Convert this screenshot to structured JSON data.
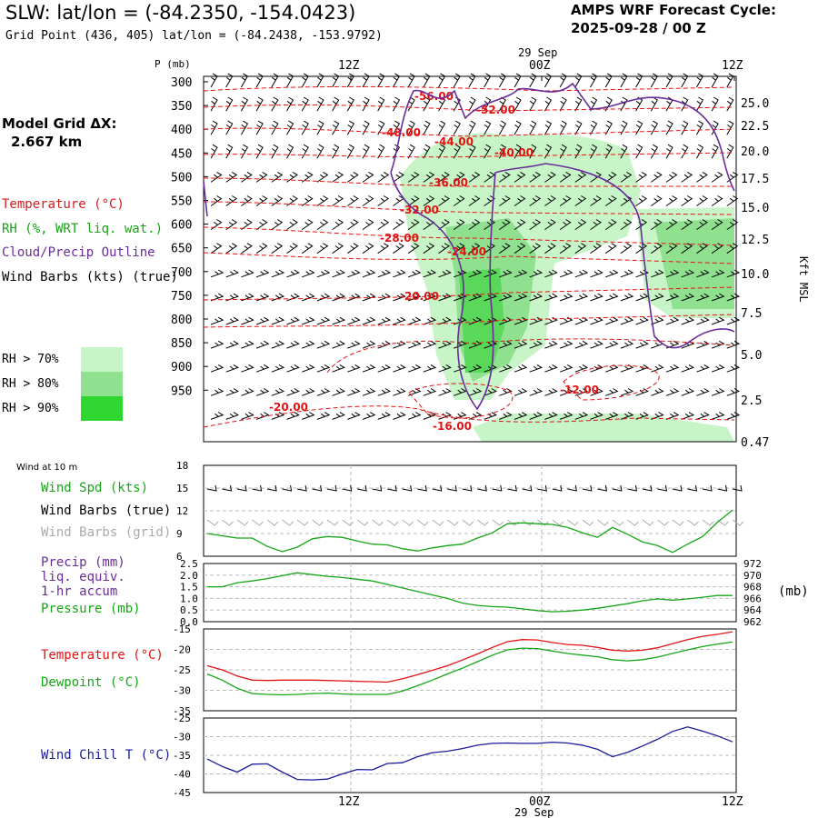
{
  "header": {
    "title": "SLW:  lat/lon = (-84.2350, -154.0423)",
    "subtitle": "Grid Point (436, 405) lat/lon = (-84.2438, -153.9792)",
    "cycle_line1": "AMPS WRF Forecast Cycle:",
    "cycle_line2": "2025-09-28 / 00  Z"
  },
  "model_grid": {
    "line1": "Model Grid ΔX:",
    "line2": "2.667 km"
  },
  "legend": {
    "temperature": "Temperature (°C)",
    "rh": "RH (%, WRT liq. wat.)",
    "cloud": "Cloud/Precip Outline",
    "wind": "Wind Barbs (kts) (true)"
  },
  "rh_legend": [
    {
      "label": "RH > 70%",
      "color": "#c8f5c8"
    },
    {
      "label": "RH > 80%",
      "color": "#8fe08f"
    },
    {
      "label": "RH > 90%",
      "color": "#2fd62f"
    }
  ],
  "panel2": {
    "wind_at_10m": "Wind at 10 m",
    "wind_spd": "Wind Spd (kts)",
    "wind_barbs_true": "Wind Barbs (true)",
    "wind_barbs_grid": "Wind Barbs (grid)"
  },
  "panel3": {
    "precip": "Precip (mm)",
    "liq": "liq. equiv.",
    "accum": "1-hr accum",
    "pressure": "Pressure (mb)",
    "unit_right": "(mb)"
  },
  "panel4": {
    "temperature": "Temperature (°C)",
    "dewpoint": "Dewpoint (°C)"
  },
  "panel5": {
    "wind_chill": "Wind Chill T (°C)"
  },
  "colors": {
    "temperature": "#e01414",
    "rh_green": "#16a516",
    "cloud": "#6a2c9a",
    "wind_chill": "#1a1a9a",
    "barb_grid": "#aaaaaa"
  },
  "chart_data": [
    {
      "type": "heatmap",
      "name": "cross-section",
      "ylabel_left": "P (mb)",
      "ylabel_right": "Kft MSL",
      "y_ticks": [
        "300",
        "350",
        "400",
        "450",
        "500",
        "550",
        "600",
        "650",
        "700",
        "750",
        "800",
        "850",
        "900",
        "950"
      ],
      "right_ticks": [
        "25.0",
        "22.5",
        "20.0",
        "17.5",
        "15.0",
        "12.5",
        "10.0",
        "7.5",
        "5.0",
        "2.5",
        "0.47"
      ],
      "x_top_ticks": [
        "12Z",
        "00Z",
        "12Z"
      ],
      "x_top_date": "29 Sep",
      "contour_labels": [
        "-56.00",
        "-52.00",
        "-48.00",
        "-44.00",
        "-40.00",
        "-36.00",
        "-32.00",
        "-28.00",
        "-24.00",
        "-20.00",
        "-16.00",
        "-12.00",
        "-20.00"
      ]
    },
    {
      "type": "line",
      "name": "wind-10m",
      "y_ticks": [
        "18",
        "15",
        "12",
        "9",
        "6"
      ],
      "ylim": [
        6,
        18
      ],
      "series": [
        {
          "name": "Wind Spd (kts)",
          "values": [
            9,
            8.7,
            8.4,
            8.4,
            7.3,
            6.6,
            7.2,
            8.3,
            8.6,
            8.5,
            8.0,
            7.6,
            7.5,
            7.0,
            6.7,
            7.1,
            7.4,
            7.6,
            8.4,
            9.1,
            10.3,
            10.4,
            10.3,
            10.2,
            9.8,
            9.1,
            8.5,
            9.8,
            8.9,
            7.9,
            7.4,
            6.5,
            7.6,
            8.6,
            10.5,
            12.1
          ]
        }
      ]
    },
    {
      "type": "line",
      "name": "precip-pressure",
      "y_ticks_left": [
        "2.5",
        "2.0",
        "1.5",
        "1.0",
        "0.5",
        "0.0"
      ],
      "y_ticks_right": [
        "972",
        "970",
        "968",
        "966",
        "964",
        "962"
      ],
      "ylim_right": [
        962,
        972
      ],
      "series": [
        {
          "name": "Pressure (mb)",
          "values": [
            968,
            968,
            968.7,
            969,
            969.4,
            969.9,
            970.4,
            970.1,
            969.8,
            969.6,
            969.3,
            969.0,
            968.4,
            967.8,
            967.2,
            966.6,
            966.0,
            965.2,
            964.8,
            964.6,
            964.5,
            964.2,
            963.9,
            963.7,
            963.8,
            964.0,
            964.3,
            964.7,
            965.1,
            965.6,
            965.9,
            965.7,
            965.9,
            966.2,
            966.5,
            966.5
          ]
        }
      ]
    },
    {
      "type": "line",
      "name": "temp-dewpoint",
      "y_ticks": [
        "-15",
        "-20",
        "-25",
        "-30",
        "-35"
      ],
      "ylim": [
        -35,
        -15
      ],
      "series": [
        {
          "name": "Temperature (°C)",
          "values": [
            -24,
            -25,
            -26.5,
            -27.5,
            -27.6,
            -27.5,
            -27.5,
            -27.5,
            -27.6,
            -27.7,
            -27.8,
            -27.9,
            -28,
            -27.2,
            -26.2,
            -25.1,
            -24,
            -22.6,
            -21.1,
            -19.5,
            -18.1,
            -17.6,
            -17.7,
            -18.3,
            -18.8,
            -19,
            -19.5,
            -20.2,
            -20.4,
            -20.2,
            -19.6,
            -18.6,
            -17.6,
            -16.8,
            -16.3,
            -15.7
          ]
        },
        {
          "name": "Dewpoint (°C)",
          "values": [
            -26,
            -27.5,
            -29.5,
            -30.8,
            -31,
            -31.1,
            -31,
            -30.8,
            -30.7,
            -30.9,
            -31,
            -31,
            -31,
            -30.2,
            -28.9,
            -27.5,
            -26,
            -24.6,
            -23,
            -21.4,
            -20.1,
            -19.7,
            -19.8,
            -20.4,
            -21,
            -21.4,
            -21.8,
            -22.5,
            -22.8,
            -22.5,
            -21.9,
            -21,
            -20.1,
            -19.3,
            -18.7,
            -18.2
          ]
        }
      ]
    },
    {
      "type": "line",
      "name": "wind-chill",
      "y_ticks": [
        "-25",
        "-30",
        "-35",
        "-40",
        "-45"
      ],
      "ylim": [
        -45,
        -25
      ],
      "x_bottom_ticks": [
        "12Z",
        "00Z",
        "12Z"
      ],
      "x_bottom_date": "29 Sep",
      "series": [
        {
          "name": "Wind Chill T (°C)",
          "values": [
            -36,
            -38,
            -39.5,
            -37.4,
            -37.3,
            -39.5,
            -41.5,
            -41.6,
            -41.4,
            -40,
            -38.8,
            -38.9,
            -37.2,
            -37,
            -35.4,
            -34.3,
            -33.9,
            -33.2,
            -32.3,
            -31.8,
            -31.7,
            -31.8,
            -31.8,
            -31.5,
            -31.7,
            -32.3,
            -33.4,
            -35.4,
            -34.2,
            -32.5,
            -30.7,
            -28.6,
            -27.4,
            -28.5,
            -29.8,
            -31.4
          ]
        }
      ]
    }
  ]
}
